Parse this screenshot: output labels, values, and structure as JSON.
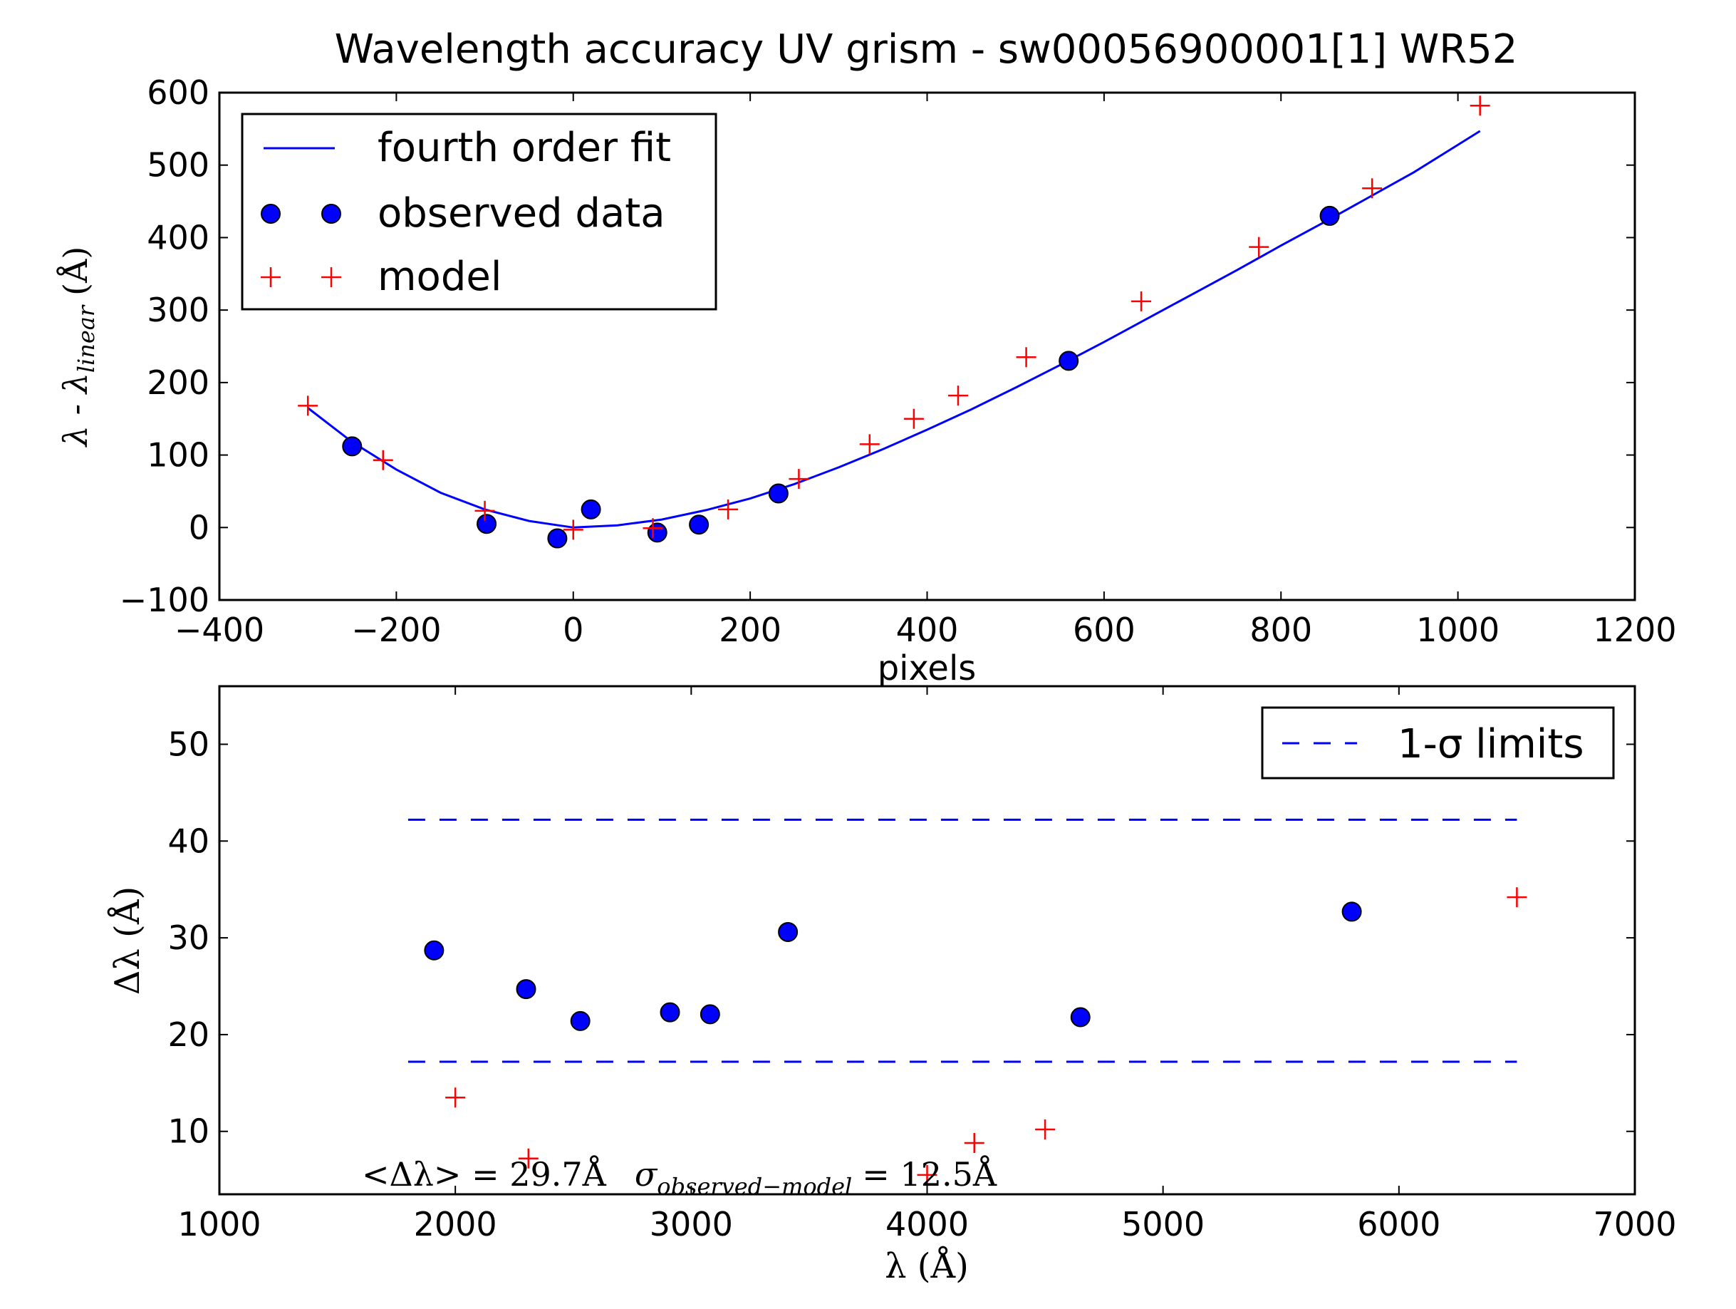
{
  "title": "Wavelength accuracy UV grism - sw00056900001[1] WR52",
  "colors": {
    "fit": "#0000ff",
    "observed_fill": "#0000ff",
    "model": "#ff0000",
    "limits": "#0000ff"
  },
  "chart_data": [
    {
      "type": "scatter",
      "xlabel": "pixels",
      "ylabel": {
        "main": "λ - λ",
        "sub": "linear",
        "unit": "(Å)"
      },
      "xlim": [
        -400,
        1200
      ],
      "ylim": [
        -100,
        600
      ],
      "xticks": [
        "−400",
        "−200",
        "0",
        "200",
        "400",
        "600",
        "800",
        "1000",
        "1200"
      ],
      "yticks": [
        "−100",
        "0",
        "100",
        "200",
        "300",
        "400",
        "500",
        "600"
      ],
      "grid": false,
      "legend": {
        "position": "top-left",
        "entries": [
          "fourth order fit",
          "observed data",
          "model"
        ]
      },
      "series": [
        {
          "name": "fourth order fit",
          "kind": "line",
          "x": [
            -300,
            -250,
            -200,
            -150,
            -100,
            -50,
            0,
            50,
            100,
            150,
            200,
            250,
            300,
            350,
            400,
            450,
            500,
            550,
            600,
            650,
            700,
            750,
            800,
            850,
            900,
            950,
            1025
          ],
          "y": [
            165,
            118,
            80,
            48,
            25,
            9,
            0,
            3,
            11,
            24,
            40,
            60,
            83,
            108,
            135,
            163,
            193,
            224,
            256,
            289,
            322,
            355,
            389,
            422,
            456,
            490,
            547
          ]
        },
        {
          "name": "observed data",
          "kind": "markers-circle",
          "x": [
            -250,
            -98,
            -18,
            20,
            95,
            142,
            232,
            560,
            855
          ],
          "y": [
            112,
            5,
            -15,
            25,
            -7,
            4,
            47,
            230,
            430
          ]
        },
        {
          "name": "model",
          "kind": "markers-plus",
          "x": [
            -300,
            -215,
            -100,
            0,
            90,
            175,
            255,
            335,
            385,
            435,
            512,
            642,
            775,
            903,
            1025
          ],
          "y": [
            168,
            93,
            23,
            -3,
            -1,
            25,
            67,
            115,
            150,
            182,
            235,
            312,
            387,
            468,
            582
          ]
        }
      ]
    },
    {
      "type": "scatter",
      "xlabel": "λ (Å)",
      "ylabel": "Δλ (Å)",
      "xlim": [
        1000,
        7000
      ],
      "ylim": [
        3.5,
        56
      ],
      "xticks": [
        "1000",
        "2000",
        "3000",
        "4000",
        "5000",
        "6000",
        "7000"
      ],
      "yticks": [
        "10",
        "20",
        "30",
        "40",
        "50"
      ],
      "ytick_values": [
        10,
        20,
        30,
        40,
        50
      ],
      "grid": false,
      "legend": {
        "position": "top-right",
        "entries": [
          "1-σ limits"
        ]
      },
      "annotation": {
        "mean_prefix": "<Δλ> = 29.7Å",
        "sigma_symbol": "σ",
        "sigma_sub": "observed−model",
        "sigma_value": "= 12.5Å"
      },
      "series": [
        {
          "name": "observed",
          "kind": "markers-circle",
          "x": [
            1910,
            2300,
            2530,
            2910,
            3080,
            3410,
            4650,
            5800
          ],
          "y": [
            28.7,
            24.7,
            21.4,
            22.3,
            22.1,
            30.6,
            21.8,
            32.7
          ]
        },
        {
          "name": "model",
          "kind": "markers-plus",
          "x": [
            2000,
            2310,
            4000,
            4200,
            4500,
            6500
          ],
          "y": [
            13.5,
            7.2,
            5.5,
            8.8,
            10.2,
            34.2
          ]
        },
        {
          "name": "1-σ limits",
          "kind": "dashed-lines",
          "x_range": [
            1800,
            6500
          ],
          "levels": [
            42.2,
            17.2
          ]
        }
      ]
    }
  ]
}
